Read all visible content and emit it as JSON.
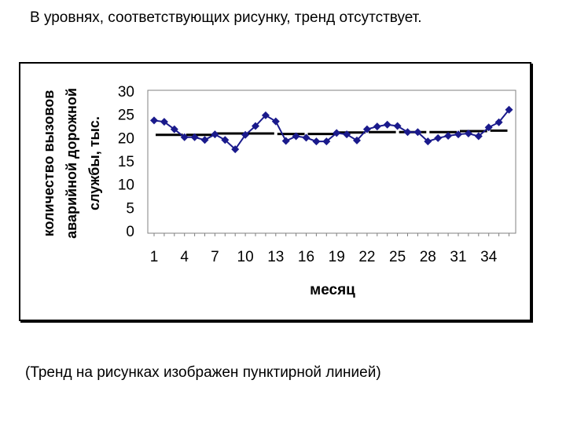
{
  "page": {
    "heading": "В уровнях, соответствующих рисунку,  тренд отсутствует.",
    "caption": "(Тренд на рисунках изображен пунктирной линией)"
  },
  "chart_data": {
    "type": "line",
    "xlabel": "месяц",
    "ylabel_lines": [
      "количество вызовов",
      "аварийной дорожной",
      "службы, тыс."
    ],
    "x": [
      1,
      2,
      3,
      4,
      5,
      6,
      7,
      8,
      9,
      10,
      11,
      12,
      13,
      14,
      15,
      16,
      17,
      18,
      19,
      20,
      21,
      22,
      23,
      24,
      25,
      26,
      27,
      28,
      29,
      30,
      31,
      32,
      33,
      34,
      35,
      36
    ],
    "x_tick_labels": [
      "1",
      "4",
      "7",
      "10",
      "13",
      "16",
      "19",
      "22",
      "25",
      "28",
      "31",
      "34"
    ],
    "y_tick_labels": [
      "0",
      "5",
      "10",
      "15",
      "20",
      "25",
      "30"
    ],
    "ylim": [
      0,
      30
    ],
    "grid": false,
    "series": [
      {
        "values": [
          23.7,
          23.4,
          21.8,
          20.1,
          20.1,
          19.5,
          20.7,
          19.5,
          17.5,
          20.6,
          22.5,
          24.8,
          23.5,
          19.3,
          20.3,
          20.0,
          19.2,
          19.2,
          21.0,
          20.7,
          19.4,
          21.8,
          22.4,
          22.8,
          22.5,
          21.2,
          21.2,
          19.2,
          19.9,
          20.4,
          20.7,
          20.9,
          20.3,
          22.2,
          23.3,
          26.0
        ],
        "color": "#1a1a8c",
        "marker": "diamond"
      }
    ],
    "trend_segments": [
      {
        "x_start": 1,
        "x_end": 4,
        "y": 20.6
      },
      {
        "x_start": 4,
        "x_end": 7,
        "y": 20.6
      },
      {
        "x_start": 7,
        "x_end": 10,
        "y": 20.9
      },
      {
        "x_start": 10,
        "x_end": 13,
        "y": 20.9
      },
      {
        "x_start": 13,
        "x_end": 16,
        "y": 20.8
      },
      {
        "x_start": 16,
        "x_end": 19,
        "y": 20.8
      },
      {
        "x_start": 19,
        "x_end": 22,
        "y": 21.1
      },
      {
        "x_start": 22,
        "x_end": 25,
        "y": 21.2
      },
      {
        "x_start": 25,
        "x_end": 28,
        "y": 21.2
      },
      {
        "x_start": 28,
        "x_end": 31,
        "y": 21.2
      },
      {
        "x_start": 31,
        "x_end": 34,
        "y": 21.4
      },
      {
        "x_start": 34,
        "x_end": 36,
        "y": 21.5
      }
    ],
    "trend_color": "#000000"
  }
}
